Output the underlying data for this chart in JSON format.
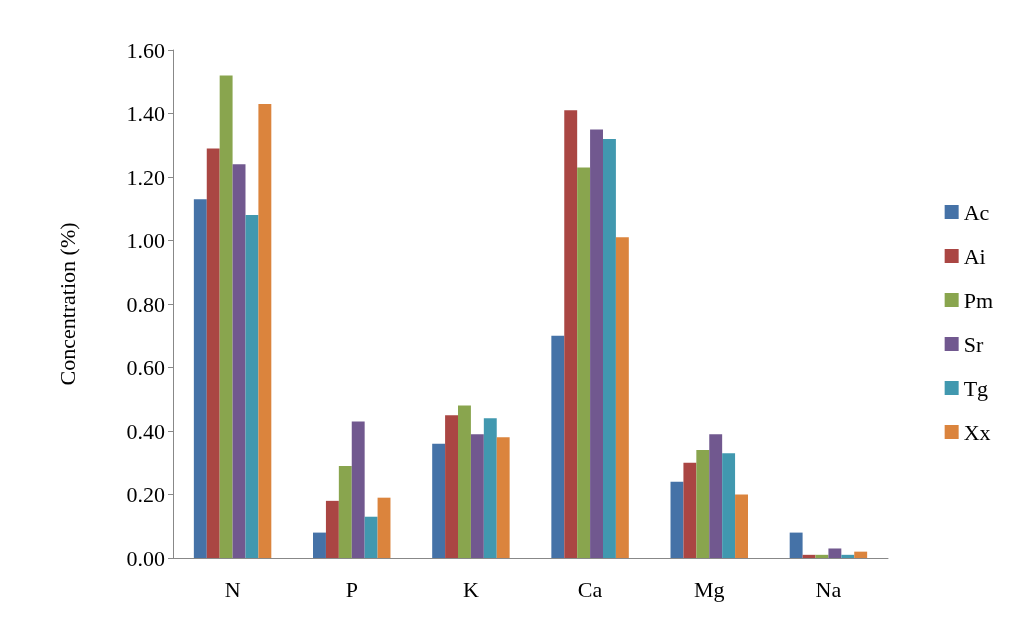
{
  "chart_data": {
    "type": "bar",
    "ylabel": "Concentration (%)",
    "categories": [
      "N",
      "P",
      "K",
      "Ca",
      "Mg",
      "Na"
    ],
    "series": [
      {
        "name": "Ac",
        "color": "#4572a7",
        "values": [
          1.13,
          0.08,
          0.36,
          0.7,
          0.24,
          0.08
        ]
      },
      {
        "name": "Ai",
        "color": "#aa4643",
        "values": [
          1.29,
          0.18,
          0.45,
          1.41,
          0.3,
          0.01
        ]
      },
      {
        "name": "Pm",
        "color": "#89a54e",
        "values": [
          1.52,
          0.29,
          0.48,
          1.23,
          0.34,
          0.01
        ]
      },
      {
        "name": "Sr",
        "color": "#71588f",
        "values": [
          1.24,
          0.43,
          0.39,
          1.35,
          0.39,
          0.03
        ]
      },
      {
        "name": "Tg",
        "color": "#4198af",
        "values": [
          1.08,
          0.13,
          0.44,
          1.32,
          0.33,
          0.01
        ]
      },
      {
        "name": "Xx",
        "color": "#db843d",
        "values": [
          1.43,
          0.19,
          0.38,
          1.01,
          0.2,
          0.02
        ]
      }
    ],
    "ylim": [
      0,
      1.6
    ],
    "yticks": [
      {
        "value": 0,
        "label": "0.00"
      },
      {
        "value": 0.2,
        "label": "0.20"
      },
      {
        "value": 0.4,
        "label": "0.40"
      },
      {
        "value": 0.6,
        "label": "0.60"
      },
      {
        "value": 0.8,
        "label": "0.80"
      },
      {
        "value": 1,
        "label": "1.00"
      },
      {
        "value": 1.2,
        "label": "1.20"
      },
      {
        "value": 1.4,
        "label": "1.40"
      },
      {
        "value": 1.6,
        "label": "1.60"
      }
    ],
    "grid": false,
    "legend": "right"
  }
}
